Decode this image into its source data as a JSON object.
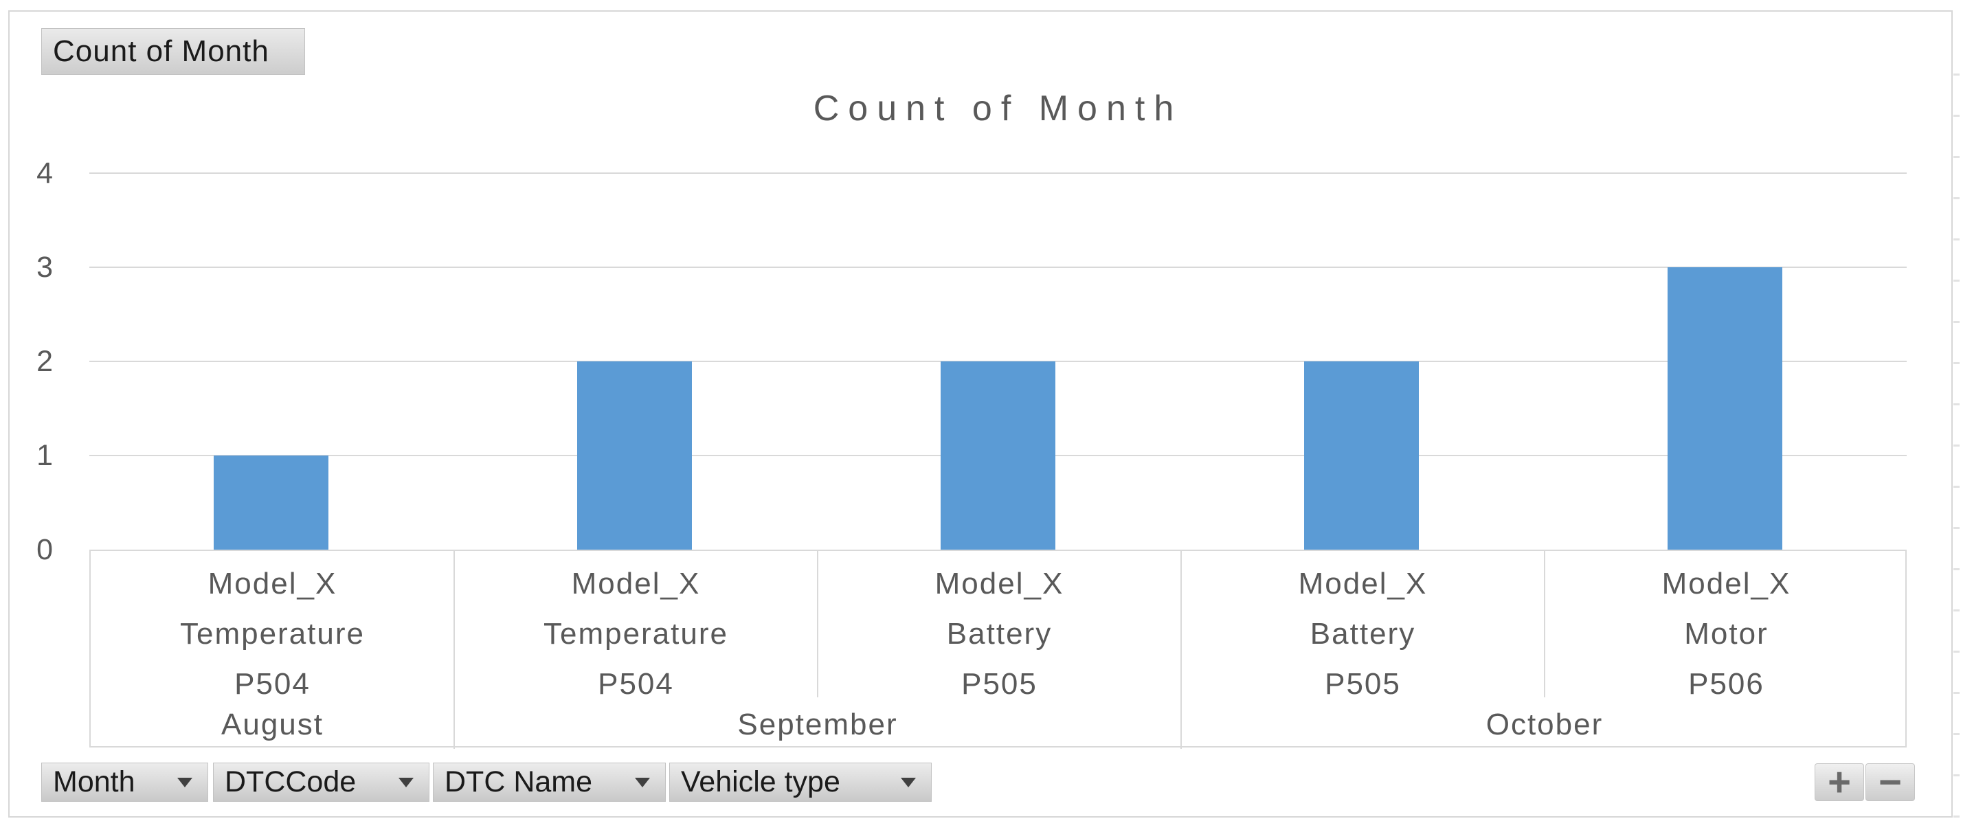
{
  "chart_data": {
    "type": "bar",
    "title": "Count of Month",
    "categories": [
      {
        "lines": [
          "Model_X",
          "Temperature",
          "P504"
        ]
      },
      {
        "lines": [
          "Model_X",
          "Temperature",
          "P504"
        ]
      },
      {
        "lines": [
          "Model_X",
          "Battery",
          "P505"
        ]
      },
      {
        "lines": [
          "Model_X",
          "Battery",
          "P505"
        ]
      },
      {
        "lines": [
          "Model_X",
          "Motor",
          "P506"
        ]
      }
    ],
    "month_groups": [
      {
        "label": "August",
        "span": 1
      },
      {
        "label": "September",
        "span": 2
      },
      {
        "label": "October",
        "span": 2
      }
    ],
    "values": [
      1,
      2,
      2,
      2,
      3
    ],
    "ylim": [
      0,
      4
    ],
    "y_ticks": [
      0,
      1,
      2,
      3,
      4
    ],
    "xlabel": "",
    "ylabel": "",
    "grid": true,
    "legend": false,
    "bar_color": "#5b9bd5"
  },
  "pivot": {
    "value_field_button": "Count of Month",
    "axis_field_buttons": [
      {
        "label": "Month"
      },
      {
        "label": "DTCCode"
      },
      {
        "label": "DTC Name"
      },
      {
        "label": "Vehicle type"
      }
    ],
    "drill_buttons": {
      "expand": "+",
      "collapse": "−"
    }
  },
  "colors": {
    "bar": "#5b9bd5",
    "axis_text": "#595959",
    "gridline": "#d9d9d9",
    "frame_border": "#d7d7d7"
  }
}
